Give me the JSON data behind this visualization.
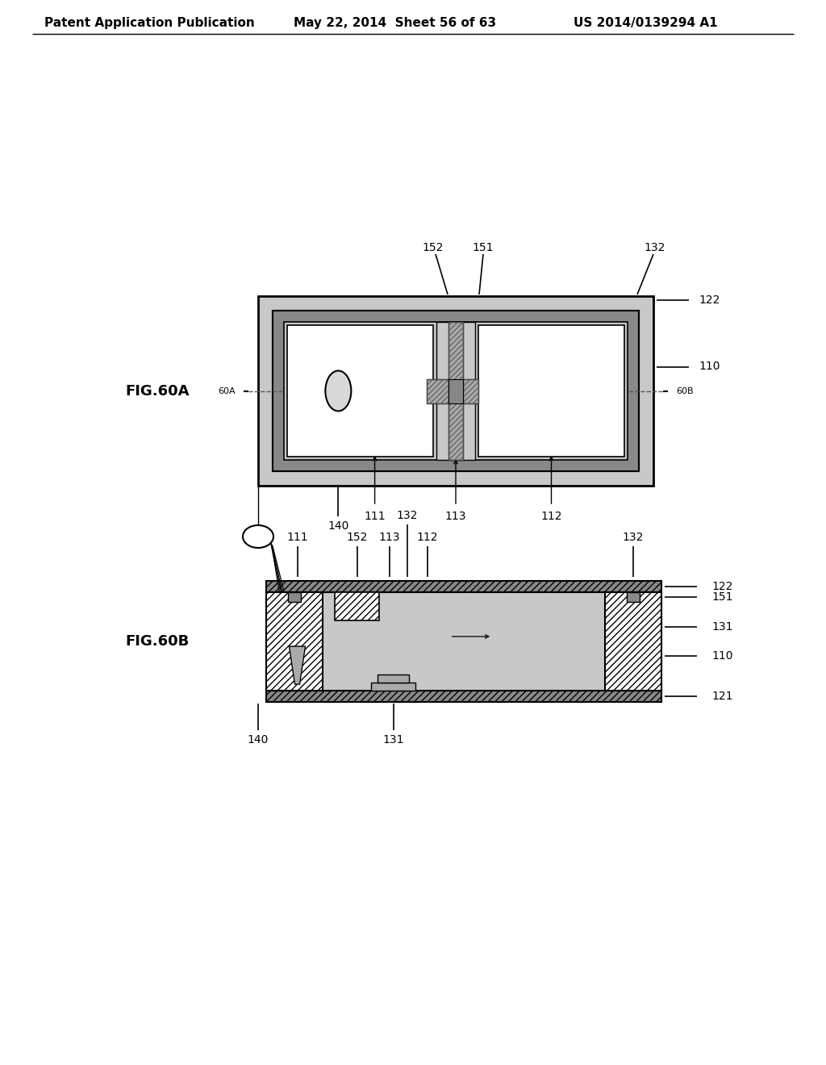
{
  "header_left": "Patent Application Publication",
  "header_mid": "May 22, 2014  Sheet 56 of 63",
  "header_right": "US 2014/0139294 A1",
  "fig_a_label": "FIG.60A",
  "fig_b_label": "FIG.60B",
  "bg_color": "#ffffff",
  "line_color": "#000000",
  "gray_dot": "#c8c8c8",
  "gray_dark": "#888888",
  "gray_med": "#aaaaaa",
  "gray_light": "#d8d8d8",
  "white": "#ffffff"
}
